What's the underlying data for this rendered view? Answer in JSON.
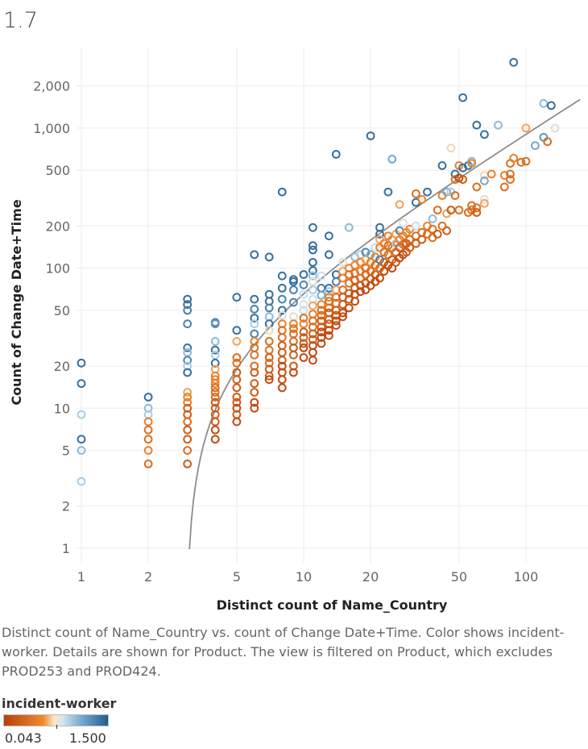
{
  "title": "1.7",
  "caption": "Distinct count of Name_Country vs. count of Change Date+Time.  Color shows incident-worker.  Details are shown for Product. The view is filtered on Product, which excludes PROD253 and PROD424.",
  "legend": {
    "title": "incident-worker",
    "min_label": "0.043",
    "max_label": "1.500"
  },
  "colors": {
    "low": "#b7410c",
    "mid_low": "#f08a2e",
    "mid": "#f3dfc6",
    "mid_high": "#7fb3d5",
    "high": "#215d8e",
    "trend": "#8c8c8c"
  },
  "chart_data": {
    "type": "scatter",
    "xlabel": "Distinct count of Name_Country",
    "ylabel": "Count of Change Date+Time",
    "xscale": "log",
    "yscale": "log",
    "xlim": [
      0.95,
      175
    ],
    "ylim": [
      0.8,
      4000
    ],
    "x_ticks": [
      1,
      2,
      5,
      10,
      20,
      50,
      100
    ],
    "x_tick_labels": [
      "1",
      "2",
      "5",
      "10",
      "20",
      "50",
      "100"
    ],
    "y_ticks": [
      1,
      2,
      5,
      10,
      20,
      50,
      100,
      200,
      500,
      1000,
      2000
    ],
    "y_tick_labels": [
      "1",
      "2",
      "5",
      "10",
      "20",
      "50",
      "100",
      "200",
      "500",
      "1,000",
      "2,000"
    ],
    "grid": true,
    "legend_position": "bottom-left",
    "color_field": "incident-worker",
    "color_range": [
      0.043,
      1.5
    ],
    "trend_line": {
      "type": "linear",
      "slope": 9.3,
      "intercept": -27.5
    },
    "points": [
      [
        1,
        21,
        1.4
      ],
      [
        1,
        15,
        1.4
      ],
      [
        1,
        9,
        0.9
      ],
      [
        1,
        6,
        1.4
      ],
      [
        1,
        5,
        1.0
      ],
      [
        1,
        3,
        0.9
      ],
      [
        2,
        12,
        1.4
      ],
      [
        2,
        10,
        1.0
      ],
      [
        2,
        9,
        0.9
      ],
      [
        2,
        8,
        0.4
      ],
      [
        2,
        7,
        0.3
      ],
      [
        2,
        6,
        0.3
      ],
      [
        2,
        5,
        0.4
      ],
      [
        2,
        4,
        0.3
      ],
      [
        3,
        60,
        1.4
      ],
      [
        3,
        55,
        1.4
      ],
      [
        3,
        50,
        1.3
      ],
      [
        3,
        40,
        1.3
      ],
      [
        3,
        27,
        1.4
      ],
      [
        3,
        25,
        1.0
      ],
      [
        3,
        22,
        1.3
      ],
      [
        3,
        20,
        0.9
      ],
      [
        3,
        18,
        1.4
      ],
      [
        3,
        13,
        0.5
      ],
      [
        3,
        12,
        0.4
      ],
      [
        3,
        11,
        0.4
      ],
      [
        3,
        10,
        0.2
      ],
      [
        3,
        9,
        0.2
      ],
      [
        3,
        8,
        0.3
      ],
      [
        3,
        7,
        0.2
      ],
      [
        3,
        6,
        0.2
      ],
      [
        3,
        5,
        0.3
      ],
      [
        3,
        4,
        0.2
      ],
      [
        4,
        41,
        1.3
      ],
      [
        4,
        40,
        1.2
      ],
      [
        4,
        30,
        1.0
      ],
      [
        4,
        26,
        1.4
      ],
      [
        4,
        24,
        0.9
      ],
      [
        4,
        21,
        1.4
      ],
      [
        4,
        19,
        0.5
      ],
      [
        4,
        17,
        0.4
      ],
      [
        4,
        16,
        0.4
      ],
      [
        4,
        15,
        0.4
      ],
      [
        4,
        14,
        0.3
      ],
      [
        4,
        13,
        0.3
      ],
      [
        4,
        12,
        0.3
      ],
      [
        4,
        11,
        0.2
      ],
      [
        4,
        10,
        0.2
      ],
      [
        4,
        9,
        0.2
      ],
      [
        4,
        8,
        0.2
      ],
      [
        4,
        7,
        0.1
      ],
      [
        4,
        6,
        0.1
      ],
      [
        5,
        62,
        1.4
      ],
      [
        5,
        36,
        1.4
      ],
      [
        5,
        30,
        0.5
      ],
      [
        5,
        23,
        0.3
      ],
      [
        5,
        21,
        0.3
      ],
      [
        5,
        18,
        0.2
      ],
      [
        5,
        16,
        0.2
      ],
      [
        5,
        14,
        0.2
      ],
      [
        5,
        12,
        0.2
      ],
      [
        5,
        11,
        0.2
      ],
      [
        5,
        10,
        0.1
      ],
      [
        5,
        9,
        0.2
      ],
      [
        5,
        8,
        0.1
      ],
      [
        6,
        125,
        1.4
      ],
      [
        6,
        60,
        1.4
      ],
      [
        6,
        51,
        1.3
      ],
      [
        6,
        44,
        1.4
      ],
      [
        6,
        40,
        0.9
      ],
      [
        6,
        34,
        1.3
      ],
      [
        6,
        30,
        0.4
      ],
      [
        6,
        27,
        0.3
      ],
      [
        6,
        24,
        0.3
      ],
      [
        6,
        20,
        0.3
      ],
      [
        6,
        18,
        0.2
      ],
      [
        6,
        15,
        0.2
      ],
      [
        6,
        13,
        0.2
      ],
      [
        6,
        11,
        0.1
      ],
      [
        6,
        10,
        0.1
      ],
      [
        7,
        120,
        1.4
      ],
      [
        7,
        65,
        1.4
      ],
      [
        7,
        58,
        1.4
      ],
      [
        7,
        52,
        1.3
      ],
      [
        7,
        45,
        1.0
      ],
      [
        7,
        40,
        1.4
      ],
      [
        7,
        36,
        0.6
      ],
      [
        7,
        30,
        0.3
      ],
      [
        7,
        26,
        0.3
      ],
      [
        7,
        23,
        0.2
      ],
      [
        7,
        21,
        0.3
      ],
      [
        7,
        19,
        0.2
      ],
      [
        7,
        17,
        0.2
      ],
      [
        7,
        16,
        0.1
      ],
      [
        8,
        350,
        1.4
      ],
      [
        8,
        88,
        1.4
      ],
      [
        8,
        72,
        1.4
      ],
      [
        8,
        60,
        1.3
      ],
      [
        8,
        50,
        1.4
      ],
      [
        8,
        46,
        0.7
      ],
      [
        8,
        40,
        0.4
      ],
      [
        8,
        36,
        0.3
      ],
      [
        8,
        32,
        0.3
      ],
      [
        8,
        28,
        0.2
      ],
      [
        8,
        25,
        0.2
      ],
      [
        8,
        22,
        0.2
      ],
      [
        8,
        20,
        0.1
      ],
      [
        8,
        18,
        0.1
      ],
      [
        8,
        16,
        0.1
      ],
      [
        8,
        14,
        0.1
      ],
      [
        9,
        83,
        1.4
      ],
      [
        9,
        80,
        1.4
      ],
      [
        9,
        70,
        1.3
      ],
      [
        9,
        57,
        1.3
      ],
      [
        9,
        45,
        0.7
      ],
      [
        9,
        40,
        0.4
      ],
      [
        9,
        37,
        0.3
      ],
      [
        9,
        34,
        0.3
      ],
      [
        9,
        30,
        0.3
      ],
      [
        9,
        27,
        0.2
      ],
      [
        9,
        24,
        0.2
      ],
      [
        9,
        20,
        0.2
      ],
      [
        9,
        18,
        0.1
      ],
      [
        10,
        90,
        1.4
      ],
      [
        10,
        76,
        1.3
      ],
      [
        10,
        65,
        0.8
      ],
      [
        10,
        55,
        0.7
      ],
      [
        10,
        50,
        0.8
      ],
      [
        10,
        44,
        0.3
      ],
      [
        10,
        40,
        0.4
      ],
      [
        10,
        35,
        0.2
      ],
      [
        10,
        32,
        0.2
      ],
      [
        10,
        29,
        0.2
      ],
      [
        10,
        27,
        0.1
      ],
      [
        10,
        23,
        0.1
      ],
      [
        11,
        195,
        1.4
      ],
      [
        11,
        145,
        1.4
      ],
      [
        11,
        135,
        1.4
      ],
      [
        11,
        110,
        1.4
      ],
      [
        11,
        96,
        1.4
      ],
      [
        11,
        88,
        1.0
      ],
      [
        11,
        80,
        0.7
      ],
      [
        11,
        70,
        0.9
      ],
      [
        11,
        60,
        0.8
      ],
      [
        11,
        54,
        0.5
      ],
      [
        11,
        47,
        0.4
      ],
      [
        11,
        42,
        0.3
      ],
      [
        11,
        38,
        0.3
      ],
      [
        11,
        34,
        0.2
      ],
      [
        11,
        31,
        0.2
      ],
      [
        11,
        28,
        0.1
      ],
      [
        11,
        25,
        0.1
      ],
      [
        11,
        22,
        0.1
      ],
      [
        12,
        88,
        0.8
      ],
      [
        12,
        72,
        1.3
      ],
      [
        12,
        64,
        1.1
      ],
      [
        12,
        55,
        0.4
      ],
      [
        12,
        50,
        0.3
      ],
      [
        12,
        46,
        0.3
      ],
      [
        12,
        42,
        0.2
      ],
      [
        12,
        38,
        0.2
      ],
      [
        12,
        35,
        0.1
      ],
      [
        12,
        32,
        0.1
      ],
      [
        12,
        29,
        0.1
      ],
      [
        13,
        170,
        1.4
      ],
      [
        13,
        125,
        1.4
      ],
      [
        13,
        72,
        1.4
      ],
      [
        13,
        68,
        0.9
      ],
      [
        13,
        62,
        0.4
      ],
      [
        13,
        58,
        0.3
      ],
      [
        13,
        52,
        0.3
      ],
      [
        13,
        48,
        0.2
      ],
      [
        13,
        43,
        0.2
      ],
      [
        13,
        40,
        0.2
      ],
      [
        13,
        36,
        0.1
      ],
      [
        13,
        33,
        0.1
      ],
      [
        14,
        650,
        1.4
      ],
      [
        14,
        90,
        1.4
      ],
      [
        14,
        80,
        1.3
      ],
      [
        14,
        70,
        0.5
      ],
      [
        14,
        62,
        0.3
      ],
      [
        14,
        56,
        0.3
      ],
      [
        14,
        50,
        0.2
      ],
      [
        14,
        46,
        0.2
      ],
      [
        14,
        42,
        0.1
      ],
      [
        14,
        39,
        0.1
      ],
      [
        15,
        110,
        0.7
      ],
      [
        15,
        95,
        0.5
      ],
      [
        15,
        85,
        0.4
      ],
      [
        15,
        70,
        0.3
      ],
      [
        15,
        62,
        0.2
      ],
      [
        15,
        55,
        0.2
      ],
      [
        15,
        48,
        0.1
      ],
      [
        15,
        45,
        0.1
      ],
      [
        16,
        195,
        1.0
      ],
      [
        16,
        100,
        0.4
      ],
      [
        16,
        90,
        0.3
      ],
      [
        16,
        78,
        0.3
      ],
      [
        16,
        66,
        0.2
      ],
      [
        16,
        60,
        0.2
      ],
      [
        16,
        52,
        0.1
      ],
      [
        17,
        120,
        1.0
      ],
      [
        17,
        105,
        0.4
      ],
      [
        17,
        92,
        0.3
      ],
      [
        17,
        82,
        0.2
      ],
      [
        17,
        72,
        0.2
      ],
      [
        17,
        65,
        0.1
      ],
      [
        17,
        58,
        0.1
      ],
      [
        18,
        125,
        0.9
      ],
      [
        18,
        110,
        0.4
      ],
      [
        18,
        95,
        0.4
      ],
      [
        18,
        85,
        0.3
      ],
      [
        18,
        75,
        0.2
      ],
      [
        18,
        68,
        0.1
      ],
      [
        19,
        130,
        1.3
      ],
      [
        19,
        115,
        0.5
      ],
      [
        19,
        100,
        0.3
      ],
      [
        19,
        90,
        0.3
      ],
      [
        19,
        78,
        0.2
      ],
      [
        19,
        70,
        0.1
      ],
      [
        20,
        880,
        1.4
      ],
      [
        20,
        125,
        1.1
      ],
      [
        20,
        110,
        0.4
      ],
      [
        20,
        95,
        0.3
      ],
      [
        20,
        84,
        0.2
      ],
      [
        20,
        75,
        0.1
      ],
      [
        21,
        140,
        0.8
      ],
      [
        21,
        120,
        0.4
      ],
      [
        21,
        105,
        0.3
      ],
      [
        21,
        90,
        0.2
      ],
      [
        21,
        80,
        0.1
      ],
      [
        22,
        195,
        1.4
      ],
      [
        22,
        175,
        1.4
      ],
      [
        22,
        160,
        0.5
      ],
      [
        22,
        140,
        0.4
      ],
      [
        22,
        115,
        1.3
      ],
      [
        22,
        100,
        0.3
      ],
      [
        22,
        85,
        0.1
      ],
      [
        23,
        150,
        0.4
      ],
      [
        23,
        130,
        0.3
      ],
      [
        23,
        110,
        0.2
      ],
      [
        23,
        95,
        0.1
      ],
      [
        24,
        350,
        1.4
      ],
      [
        24,
        170,
        0.4
      ],
      [
        24,
        145,
        0.3
      ],
      [
        24,
        125,
        0.3
      ],
      [
        24,
        105,
        0.1
      ],
      [
        25,
        600,
        1.1
      ],
      [
        25,
        160,
        0.4
      ],
      [
        25,
        140,
        0.3
      ],
      [
        25,
        115,
        0.2
      ],
      [
        25,
        100,
        0.1
      ],
      [
        26,
        175,
        0.5
      ],
      [
        26,
        150,
        0.9
      ],
      [
        26,
        130,
        0.3
      ],
      [
        26,
        110,
        0.2
      ],
      [
        27,
        285,
        0.5
      ],
      [
        27,
        185,
        1.3
      ],
      [
        27,
        160,
        0.4
      ],
      [
        27,
        140,
        0.2
      ],
      [
        27,
        118,
        0.1
      ],
      [
        28,
        210,
        0.7
      ],
      [
        28,
        170,
        0.4
      ],
      [
        28,
        148,
        0.3
      ],
      [
        28,
        125,
        0.1
      ],
      [
        29,
        180,
        0.4
      ],
      [
        29,
        150,
        0.2
      ],
      [
        29,
        130,
        0.2
      ],
      [
        30,
        190,
        0.4
      ],
      [
        30,
        160,
        0.3
      ],
      [
        30,
        140,
        0.2
      ],
      [
        32,
        340,
        0.3
      ],
      [
        32,
        295,
        1.4
      ],
      [
        32,
        200,
        0.8
      ],
      [
        32,
        170,
        0.3
      ],
      [
        32,
        150,
        0.2
      ],
      [
        34,
        310,
        0.4
      ],
      [
        34,
        180,
        0.3
      ],
      [
        34,
        160,
        0.2
      ],
      [
        36,
        350,
        1.4
      ],
      [
        36,
        200,
        0.4
      ],
      [
        36,
        175,
        0.3
      ],
      [
        38,
        225,
        1.0
      ],
      [
        38,
        190,
        0.3
      ],
      [
        38,
        165,
        0.3
      ],
      [
        40,
        260,
        0.3
      ],
      [
        40,
        175,
        0.2
      ],
      [
        42,
        540,
        1.4
      ],
      [
        42,
        330,
        0.4
      ],
      [
        42,
        200,
        0.3
      ],
      [
        44,
        350,
        1.1
      ],
      [
        44,
        245,
        0.5
      ],
      [
        44,
        185,
        0.2
      ],
      [
        46,
        720,
        0.6
      ],
      [
        46,
        350,
        0.9
      ],
      [
        46,
        260,
        0.2
      ],
      [
        48,
        470,
        1.4
      ],
      [
        48,
        330,
        0.3
      ],
      [
        48,
        430,
        0.3
      ],
      [
        50,
        540,
        0.4
      ],
      [
        50,
        260,
        0.3
      ],
      [
        50,
        440,
        0.1
      ],
      [
        52,
        1650,
        1.4
      ],
      [
        52,
        520,
        1.4
      ],
      [
        52,
        430,
        0.2
      ],
      [
        55,
        540,
        1.4
      ],
      [
        55,
        250,
        0.3
      ],
      [
        57,
        580,
        1.0
      ],
      [
        57,
        560,
        0.4
      ],
      [
        57,
        280,
        0.3
      ],
      [
        57,
        260,
        0.3
      ],
      [
        60,
        1050,
        1.4
      ],
      [
        60,
        380,
        0.3
      ],
      [
        60,
        270,
        0.3
      ],
      [
        60,
        250,
        0.2
      ],
      [
        65,
        900,
        1.4
      ],
      [
        65,
        460,
        0.6
      ],
      [
        65,
        420,
        1.1
      ],
      [
        65,
        310,
        0.7
      ],
      [
        65,
        290,
        0.5
      ],
      [
        70,
        470,
        0.4
      ],
      [
        75,
        1050,
        1.0
      ],
      [
        80,
        460,
        0.4
      ],
      [
        80,
        380,
        0.3
      ],
      [
        85,
        560,
        0.3
      ],
      [
        85,
        470,
        0.3
      ],
      [
        85,
        430,
        0.3
      ],
      [
        88,
        2950,
        1.4
      ],
      [
        88,
        610,
        0.4
      ],
      [
        95,
        570,
        0.3
      ],
      [
        100,
        580,
        0.3
      ],
      [
        100,
        1000,
        0.5
      ],
      [
        110,
        750,
        1.1
      ],
      [
        120,
        1500,
        1.0
      ],
      [
        120,
        860,
        1.2
      ],
      [
        125,
        800,
        0.3
      ],
      [
        130,
        1450,
        1.4
      ],
      [
        135,
        1000,
        0.7
      ]
    ]
  }
}
